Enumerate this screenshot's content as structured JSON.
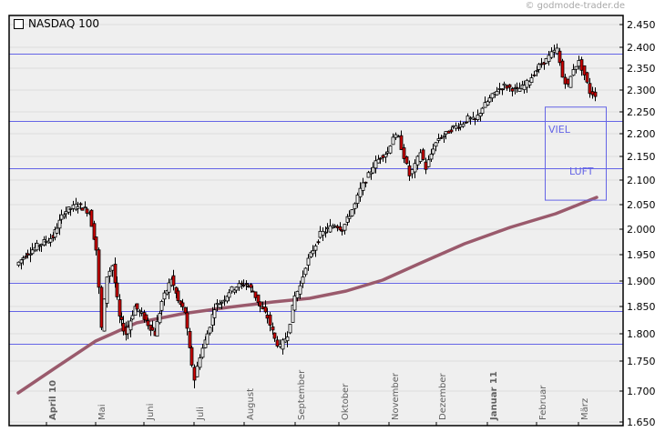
{
  "header": {
    "copyright": "© godmode-trader.de",
    "legend_label": "NASDAQ 100"
  },
  "colors": {
    "plot_background": "#efefef",
    "gridline": "#dcdcdc",
    "frame": "#000000",
    "horizontal_line": "#6464e6",
    "moving_average": "#9a5a6c",
    "bear_candle": "#d00000",
    "bull_candle": "#ffffff",
    "annotation": "#6464e6",
    "axis_label": "#606060"
  },
  "annotations": {
    "box_text_1": "VIEL",
    "box_text_2": "LUFT"
  },
  "chart_data": {
    "type": "candlestick",
    "title": "NASDAQ 100",
    "source": "© godmode-trader.de",
    "xlabel": "",
    "ylabel": "",
    "ylim": [
      1650,
      2450
    ],
    "y_ticks": [
      "2.450",
      "2.400",
      "2.350",
      "2.300",
      "2.250",
      "2.200",
      "2.150",
      "2.100",
      "2.050",
      "2.000",
      "1.950",
      "1.900",
      "1.850",
      "1.800",
      "1.750",
      "1.700",
      "1.650"
    ],
    "y_tick_values": [
      2450,
      2400,
      2350,
      2300,
      2250,
      2200,
      2150,
      2100,
      2050,
      2000,
      1950,
      1900,
      1850,
      1800,
      1750,
      1700,
      1650
    ],
    "x_ticks": [
      "April 10",
      "Mai",
      "Juni",
      "Juli",
      "August",
      "September",
      "Oktober",
      "November",
      "Dezember",
      "Januar 11",
      "Februar",
      "März"
    ],
    "x_ticks_bold": [
      "April 10",
      "Januar 11"
    ],
    "grid": true,
    "legend_position": "top-left",
    "horizontal_lines": [
      2385,
      2230,
      2125,
      1897,
      1842,
      1782
    ],
    "annotation_box": {
      "label_top": "VIEL",
      "label_bottom": "LUFT",
      "y_top": 2262,
      "y_bottom": 2060,
      "x_start": "Februar (late)",
      "x_end": "März (late)"
    },
    "moving_average": {
      "name": "200-day moving average",
      "points": [
        {
          "x": "April 10 (early)",
          "y": 1697
        },
        {
          "x": "Mai",
          "y": 1790
        },
        {
          "x": "Juni",
          "y": 1822
        },
        {
          "x": "Juli",
          "y": 1840
        },
        {
          "x": "August",
          "y": 1850
        },
        {
          "x": "September",
          "y": 1862
        },
        {
          "x": "Oktober",
          "y": 1880
        },
        {
          "x": "November",
          "y": 1905
        },
        {
          "x": "Dezember",
          "y": 1950
        },
        {
          "x": "Januar 11",
          "y": 1993
        },
        {
          "x": "Februar",
          "y": 2022
        },
        {
          "x": "März",
          "y": 2050
        },
        {
          "x": "März (late)",
          "y": 2062
        }
      ]
    },
    "price_path_close_approx": [
      {
        "x": "April 10 (early)",
        "y": 1930
      },
      {
        "x": "April 10 (mid)",
        "y": 1965
      },
      {
        "x": "April 10 (late)",
        "y": 2050
      },
      {
        "x": "Mai (early)",
        "y": 2035
      },
      {
        "x": "Mai (mid)",
        "y": 1800
      },
      {
        "x": "Mai (late)",
        "y": 1905
      },
      {
        "x": "Juni (early)",
        "y": 1800
      },
      {
        "x": "Juni (mid)",
        "y": 1890
      },
      {
        "x": "Juni (late)",
        "y": 1840
      },
      {
        "x": "Juli (early)",
        "y": 1720
      },
      {
        "x": "Juli (mid)",
        "y": 1790
      },
      {
        "x": "Juli (late)",
        "y": 1870
      },
      {
        "x": "August (early)",
        "y": 1905
      },
      {
        "x": "August (mid)",
        "y": 1830
      },
      {
        "x": "August (late)",
        "y": 1770
      },
      {
        "x": "September (early)",
        "y": 1880
      },
      {
        "x": "September (mid)",
        "y": 1960
      },
      {
        "x": "September (late)",
        "y": 2010
      },
      {
        "x": "Oktober (early)",
        "y": 2030
      },
      {
        "x": "Oktober (mid)",
        "y": 2100
      },
      {
        "x": "Oktober (late)",
        "y": 2150
      },
      {
        "x": "November (early)",
        "y": 2195
      },
      {
        "x": "November (mid)",
        "y": 2100
      },
      {
        "x": "November (late)",
        "y": 2160
      },
      {
        "x": "Dezember (mid)",
        "y": 2215
      },
      {
        "x": "Dezember (late)",
        "y": 2235
      },
      {
        "x": "Januar 11 (early)",
        "y": 2265
      },
      {
        "x": "Januar 11 (mid)",
        "y": 2310
      },
      {
        "x": "Januar 11 (late)",
        "y": 2310
      },
      {
        "x": "Februar (early)",
        "y": 2350
      },
      {
        "x": "Februar (mid)",
        "y": 2395
      },
      {
        "x": "Februar (late)",
        "y": 2330
      },
      {
        "x": "März (early)",
        "y": 2365
      },
      {
        "x": "März (mid)",
        "y": 2330
      },
      {
        "x": "März (late)",
        "y": 2290
      }
    ],
    "high": 2400,
    "low": 1700
  }
}
